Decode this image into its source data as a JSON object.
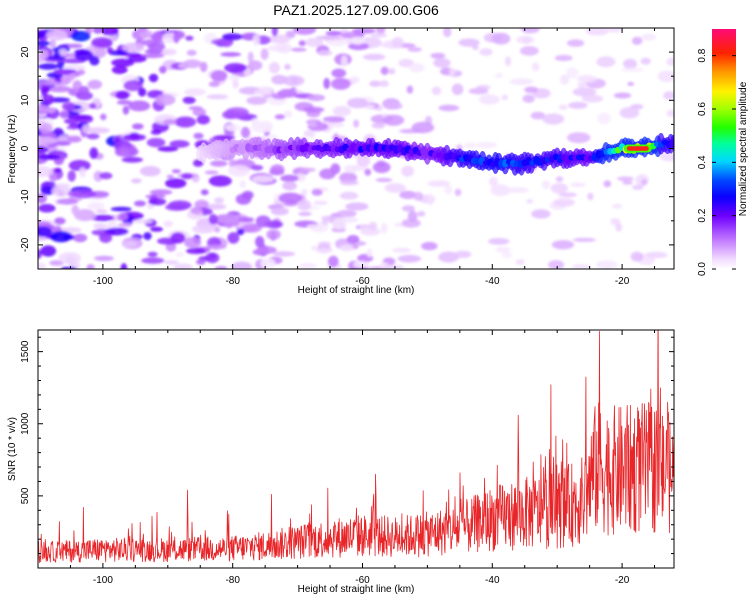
{
  "figure": {
    "title": "PAZ1.2025.127.09.00.G06",
    "colorbar_label": "Normalized spectral amplitude",
    "colorbar_ticks": [
      "0.0",
      "0.2",
      "0.4",
      "0.6",
      "0.8"
    ],
    "colors": {
      "snr_line": "#e8262a",
      "track_peak": "#ff2020",
      "background": "#ffffff"
    }
  },
  "chart_data": [
    {
      "type": "heatmap",
      "name": "spectrogram",
      "xlabel": "Height of straight line (km)",
      "ylabel": "Frequency (Hz)",
      "xlim": [
        -110,
        -12
      ],
      "ylim": [
        -25,
        25
      ],
      "xticks": [
        -100,
        -80,
        -60,
        -40,
        -20
      ],
      "yticks": [
        -20,
        -10,
        0,
        10,
        20
      ],
      "xtick_labels": [
        "-100",
        "-80",
        "-60",
        "-40",
        "-20"
      ],
      "ytick_labels": [
        "-20",
        "-10",
        "0",
        "10",
        "20"
      ],
      "zlim": [
        0.0,
        0.9
      ],
      "ridge": {
        "height_km": [
          -85,
          -80,
          -75,
          -70,
          -65,
          -60,
          -55,
          -50,
          -45,
          -40,
          -35,
          -30,
          -25,
          -20,
          -17,
          -14
        ],
        "frequency_hz": [
          -1,
          0,
          0,
          0,
          0,
          0,
          0,
          -1,
          -2,
          -3,
          -3,
          -2,
          -2,
          0,
          0,
          1
        ],
        "amplitude": [
          0.05,
          0.1,
          0.15,
          0.2,
          0.22,
          0.25,
          0.25,
          0.22,
          0.3,
          0.33,
          0.3,
          0.28,
          0.25,
          0.55,
          0.88,
          0.3
        ]
      }
    },
    {
      "type": "line",
      "name": "snr",
      "xlabel": "Height of straight line (km)",
      "ylabel": "SNR (10 * v/v)",
      "xlim": [
        -110,
        -12
      ],
      "ylim": [
        0,
        1650
      ],
      "xticks": [
        -100,
        -80,
        -60,
        -40,
        -20
      ],
      "yticks": [
        500,
        1000,
        1500
      ],
      "xtick_labels": [
        "-100",
        "-80",
        "-60",
        "-40",
        "-20"
      ],
      "ytick_labels": [
        "500",
        "1000",
        "1500"
      ],
      "envelope": {
        "height_km": [
          -110,
          -100,
          -90,
          -80,
          -75,
          -70,
          -65,
          -60,
          -55,
          -50,
          -45,
          -40,
          -35,
          -30,
          -26,
          -24,
          -22,
          -18,
          -15,
          -12
        ],
        "mean_snr": [
          120,
          140,
          140,
          150,
          170,
          200,
          230,
          250,
          240,
          260,
          300,
          380,
          420,
          450,
          520,
          780,
          750,
          760,
          780,
          700
        ]
      },
      "peaks": [
        {
          "height_km": -103,
          "snr": 420
        },
        {
          "height_km": -87,
          "snr": 540
        },
        {
          "height_km": -74,
          "snr": 510
        },
        {
          "height_km": -58,
          "snr": 650
        },
        {
          "height_km": -45,
          "snr": 660
        },
        {
          "height_km": -36,
          "snr": 1060
        },
        {
          "height_km": -31,
          "snr": 1270
        },
        {
          "height_km": -23.5,
          "snr": 1640
        },
        {
          "height_km": -13,
          "snr": 1150
        }
      ]
    }
  ]
}
